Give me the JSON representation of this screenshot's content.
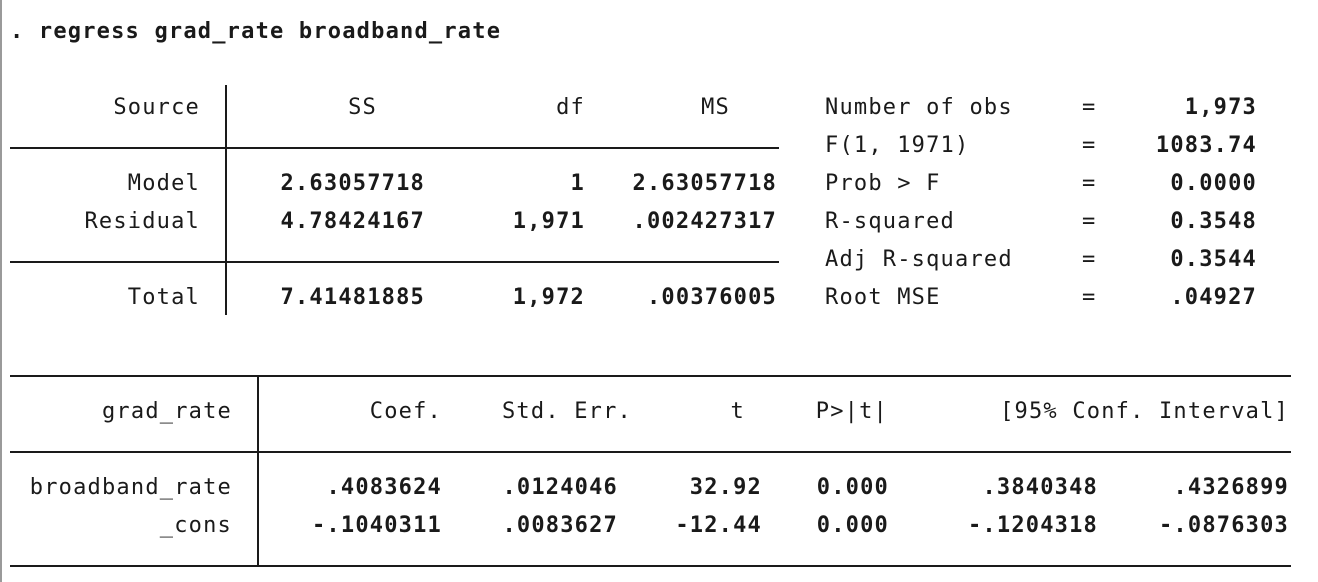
{
  "command": ". regress grad_rate broadband_rate",
  "anova": {
    "headers": {
      "source": "Source",
      "ss": "SS",
      "df": "df",
      "ms": "MS"
    },
    "rows": [
      {
        "source": "Model",
        "ss": "2.63057718",
        "df": "1",
        "ms": "2.63057718"
      },
      {
        "source": "Residual",
        "ss": "4.78424167",
        "df": "1,971",
        "ms": ".002427317"
      },
      {
        "source": "Total",
        "ss": "7.41481885",
        "df": "1,972",
        "ms": ".00376005"
      }
    ]
  },
  "stats": [
    {
      "label": "Number of obs",
      "eq": "=",
      "value": "1,973"
    },
    {
      "label": "F(1, 1971)",
      "eq": "=",
      "value": "1083.74"
    },
    {
      "label": "Prob > F",
      "eq": "=",
      "value": "0.0000"
    },
    {
      "label": "R-squared",
      "eq": "=",
      "value": "0.3548"
    },
    {
      "label": "Adj R-squared",
      "eq": "=",
      "value": "0.3544"
    },
    {
      "label": "Root MSE",
      "eq": "=",
      "value": ".04927"
    }
  ],
  "coef": {
    "headers": {
      "var": "grad_rate",
      "coef": "Coef.",
      "se": "Std. Err.",
      "t": "t",
      "p": "P>|t|",
      "ci": "[95% Conf. Interval]"
    },
    "rows": [
      {
        "var": "broadband_rate",
        "coef": ".4083624",
        "se": ".0124046",
        "t": "32.92",
        "p": "0.000",
        "lo": ".3840348",
        "hi": ".4326899"
      },
      {
        "var": "_cons",
        "coef": "-.1040311",
        "se": ".0083627",
        "t": "-12.44",
        "p": "0.000",
        "lo": "-.1204318",
        "hi": "-.0876303"
      }
    ]
  }
}
